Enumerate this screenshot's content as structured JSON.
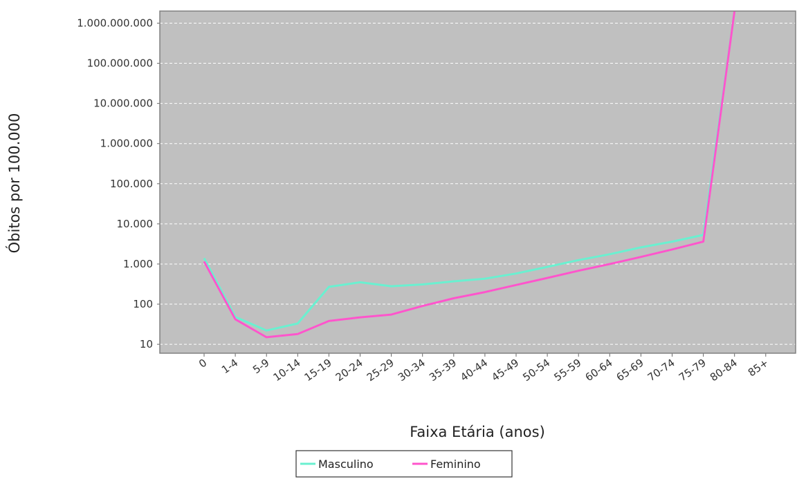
{
  "chart_data": {
    "type": "line",
    "xlabel": "Faixa Etária (anos)",
    "ylabel": "Óbitos por 100.000",
    "yscale": "log",
    "ylim": [
      6,
      2000000000
    ],
    "grid": true,
    "legend_position": "bottom-center",
    "plot_background": "#c0c0c0",
    "categories": [
      "0",
      "1-4",
      "5-9",
      "10-14",
      "15-19",
      "20-24",
      "25-29",
      "30-34",
      "35-39",
      "40-44",
      "45-49",
      "50-54",
      "55-59",
      "60-64",
      "65-69",
      "70-74",
      "75-79",
      "80-84",
      "85+"
    ],
    "y_ticks": [
      10,
      100,
      1000,
      10000,
      100000,
      1000000,
      10000000,
      100000000,
      1000000000
    ],
    "y_tick_labels": [
      "10",
      "100",
      "1.000",
      "10.000",
      "100.000",
      "1.000.000",
      "10.000.000",
      "100.000.000",
      "1.000.000.000"
    ],
    "series": [
      {
        "name": "Masculino",
        "color": "#6af0d0",
        "values": [
          1400,
          48,
          22,
          33,
          270,
          350,
          280,
          310,
          370,
          430,
          580,
          850,
          1250,
          1750,
          2600,
          3600,
          5300,
          2000000000,
          null
        ]
      },
      {
        "name": "Feminino",
        "color": "#ff55cc",
        "values": [
          1150,
          42,
          15,
          18,
          38,
          47,
          55,
          90,
          140,
          200,
          300,
          450,
          680,
          1000,
          1500,
          2300,
          3600,
          2000000000,
          null
        ]
      }
    ]
  }
}
